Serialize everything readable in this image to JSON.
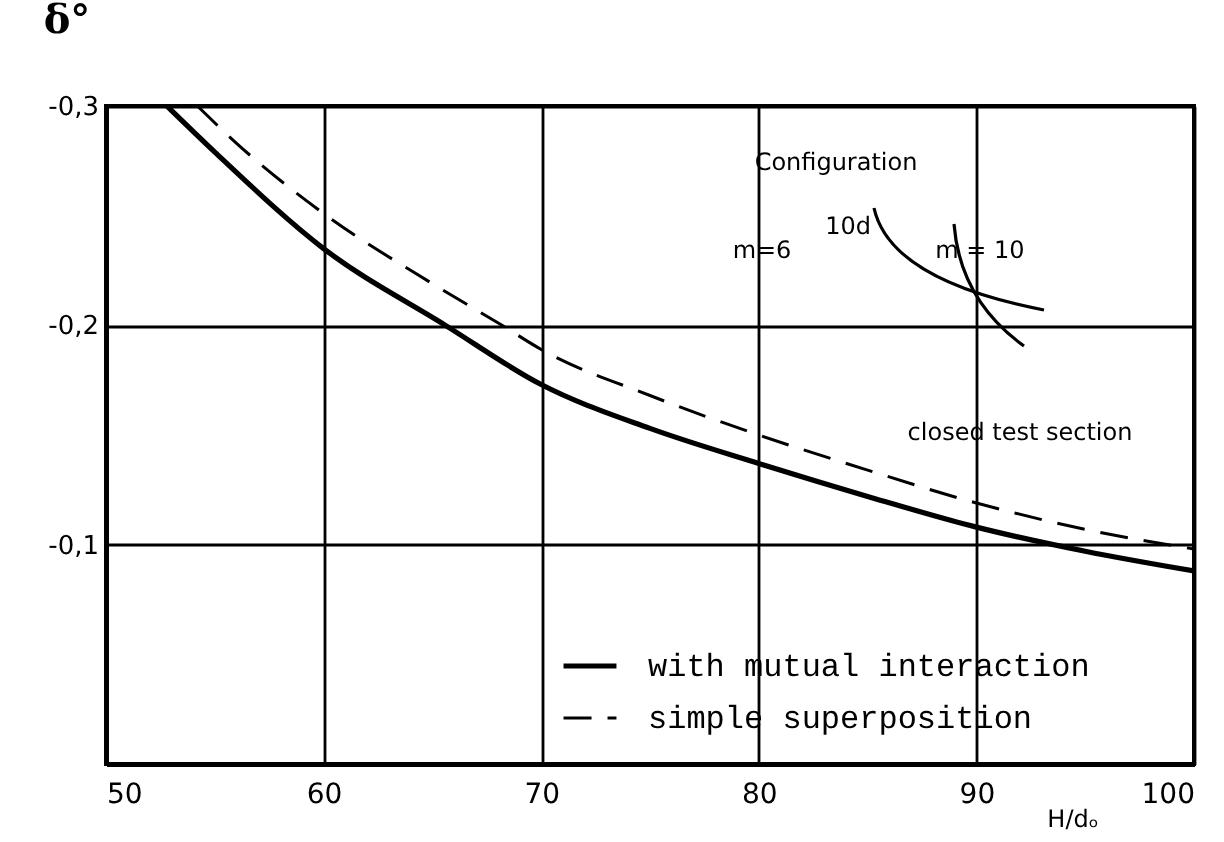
{
  "chart_data": {
    "type": "line",
    "xlabel": "H/dₒ",
    "ylabel": "δ°",
    "series": [
      {
        "name": "with mutual interaction",
        "color": "#000000",
        "line_style": "solid",
        "x": [
          52.8,
          55,
          60,
          65.6,
          70,
          75,
          80,
          85,
          90,
          95,
          100
        ],
        "values": [
          -0.3,
          -0.279,
          -0.235,
          -0.2,
          -0.173,
          -0.153,
          -0.137,
          -0.122,
          -0.108,
          -0.097,
          -0.088
        ]
      },
      {
        "name": "simple superposition",
        "color": "#000000",
        "line_style": "dashed",
        "x": [
          54.2,
          56,
          60,
          65,
          68.2,
          70,
          75,
          80,
          85,
          90,
          95,
          100
        ],
        "values": [
          -0.3,
          -0.283,
          -0.251,
          -0.219,
          -0.2,
          -0.189,
          -0.168,
          -0.15,
          -0.134,
          -0.119,
          -0.107,
          -0.098
        ]
      }
    ],
    "xlim": [
      50,
      100
    ],
    "xticks": [
      50,
      60,
      70,
      80,
      90,
      100
    ],
    "ylim": [
      0,
      -0.3
    ],
    "yticks": [
      {
        "value": -0.3,
        "label": "-0,3"
      },
      {
        "value": -0.2,
        "label": "-0,2"
      },
      {
        "value": -0.1,
        "label": "-0,1"
      }
    ],
    "grid": true,
    "legend": "bottom right",
    "annotations": [
      "Configuration",
      "m=6",
      "10d",
      "m = 10",
      "closed test section"
    ]
  }
}
